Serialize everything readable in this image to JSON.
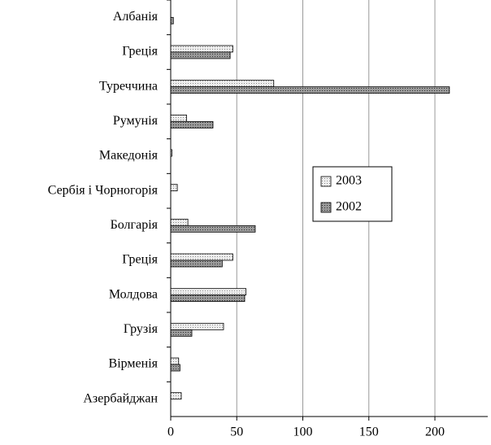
{
  "chart_data": {
    "type": "hbar",
    "categories": [
      "Албанія",
      "Греція",
      "Туреччина",
      "Румунія",
      "Македонія",
      "Сербія і Чорногорія",
      "Болгарія",
      "Греція",
      "Молдова",
      "Грузія",
      "Вірменія",
      "Азербайджан"
    ],
    "series": [
      {
        "name": "2003",
        "color": "#d9d9d9",
        "values": [
          0,
          47,
          78,
          12,
          1,
          5,
          13,
          47,
          57,
          40,
          6,
          8
        ]
      },
      {
        "name": "2002",
        "color": "#7f7f7f",
        "values": [
          2,
          45,
          211,
          32,
          0,
          0,
          64,
          39,
          56,
          16,
          7,
          0
        ]
      }
    ],
    "xlim": [
      0,
      240
    ],
    "xticks": [
      0,
      50,
      100,
      150,
      200
    ],
    "grid": true,
    "legend": "right"
  }
}
